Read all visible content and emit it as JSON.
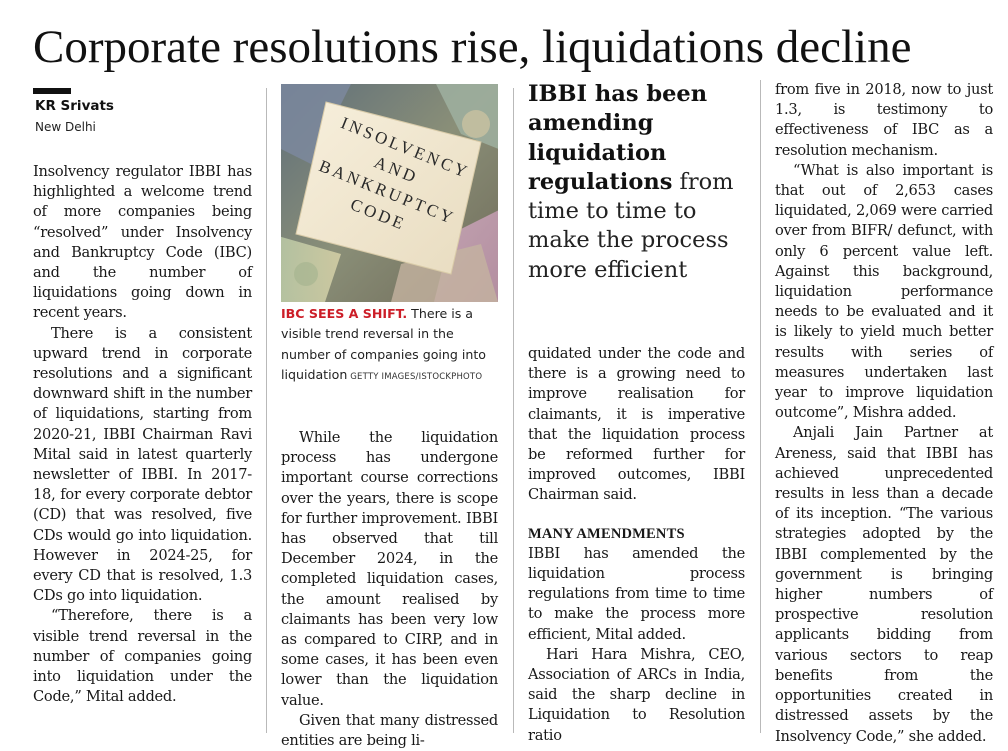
{
  "article": {
    "headline": "Corporate resolutions rise, liquidations decline",
    "byline": "KR Srivats",
    "dateline": "New Delhi",
    "columns": {
      "col1": [
        "Insolvency regulator IBBI has highlighted a welcome trend of more companies being “resolved” under Insolvency and Bankruptcy Code (IBC) and the number of liquidations going down in recent years.",
        "There is a consistent upward trend in corporate resolutions and a significant downward shift in the number of liquidations, starting from 2020-21, IBBI Chairman Ravi Mital said in latest quarterly newsletter of IBBI. In 2017-18, for every corporate debtor (CD) that was resolved, five CDs would go into liquidation. However in 2024-25, for every CD that is resolved, 1.3 CDs go into liquidation.",
        "“Therefore, there is a visible trend reversal in the number of companies going into liquidation under the Code,” Mital added."
      ],
      "col2": [
        "While the liquidation process has undergone important course corrections over the years, there is scope for further improvement. IBBI has observed that till December 2024, in the completed liquidation cases, the amount realised by claimants has been very low as compared to CIRP, and in some cases, it has been even lower than the liquidation value.",
        "Given that many distressed entities are being li-"
      ],
      "col3_lead": "quidated under the code and there is a growing need to improve realisation for claimants, it is imperative that the liquidation process be reformed further for improved outcomes, IBBI Chairman said.",
      "subhead": "MANY AMENDMENTS",
      "col3_after": [
        "IBBI has amended the liquidation process regulations from time to time to make the process more efficient, Mital added.",
        "Hari Hara Mishra, CEO, Association of ARCs in India, said the sharp decline in Liquidation to Resolution ratio"
      ],
      "col4": [
        "from five in 2018, now to just 1.3, is testimony to effectiveness of IBC as a resolution mechanism.",
        "“What is also important is that out of 2,653 cases liquidated, 2,069 were carried over from BIFR/ defunct, with only 6 percent value left. Against this background, liquidation performance needs to be evaluated and it is likely to yield much better results with series of measures undertaken last year to improve liquidation outcome”, Mishra added.",
        "Anjali Jain Partner at Areness, said that IBBI has achieved unprecedented results in less than a decade of its inception. “The various strategies adopted by the IBBI complemented by the government is bringing higher numbers of prospective resolution applicants bidding from various sectors to reap benefits from the opportunities created in distressed assets by the Insolvency Code,” she added."
      ]
    },
    "photo": {
      "label_lines": [
        "INSOLVENCY",
        "AND",
        "BANKRUPTCY",
        "CODE"
      ],
      "caption_kicker": "IBC SEES A SHIFT.",
      "caption_text": " There is a visible trend reversal in the number of companies going into liquidation",
      "caption_credit": " GETTY IMAGES/ISTOCKPHOTO"
    },
    "pullquote": {
      "bold": "IBBI has been amending liquidation regulations",
      "light": " from time to time to make the process more efficient"
    }
  },
  "colors": {
    "kicker": "#cc1d27",
    "rule": "#b9b9b9",
    "text": "#161616"
  }
}
